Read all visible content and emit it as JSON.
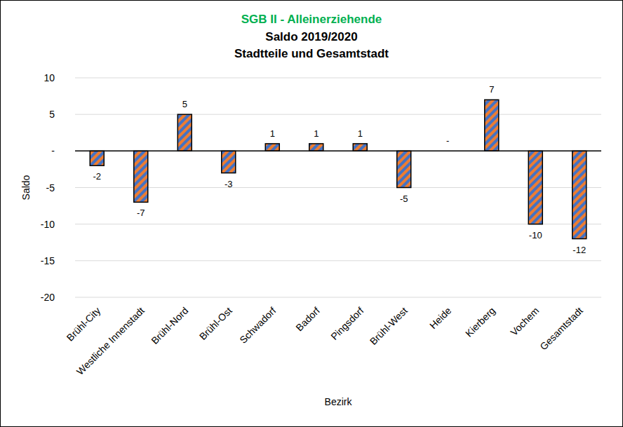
{
  "chart_data": {
    "type": "bar",
    "title": "SGB II - Alleinerziehende",
    "subtitle": [
      "Saldo  2019/2020",
      "Stadtteile und Gesamtstadt"
    ],
    "x_label": "Bezirk",
    "y_label": "Saldo",
    "categories": [
      "Brühl-City",
      "Westliche Innenstadt",
      "Brühl-Nord",
      "Brühl-Ost",
      "Schwadorf",
      "Badorf",
      "Pingsdorf",
      "Brühl-West",
      "Heide",
      "Kierberg",
      "Vochem",
      "Gesamtstadt"
    ],
    "values": [
      -2,
      -7,
      5,
      -3,
      1,
      1,
      1,
      -5,
      0,
      7,
      -10,
      -12
    ],
    "value_labels": [
      "-2",
      "-7",
      "5",
      "-3",
      "1",
      "1",
      "1",
      "-5",
      "-",
      "7",
      "-10",
      "-12"
    ],
    "color": "#ed7d31",
    "ylim": [
      -20,
      10
    ],
    "yticks": [
      -20,
      -15,
      -10,
      -5,
      {
        "value": 0,
        "label": "-"
      },
      5,
      10
    ],
    "grid": true,
    "data_labels": true
  }
}
